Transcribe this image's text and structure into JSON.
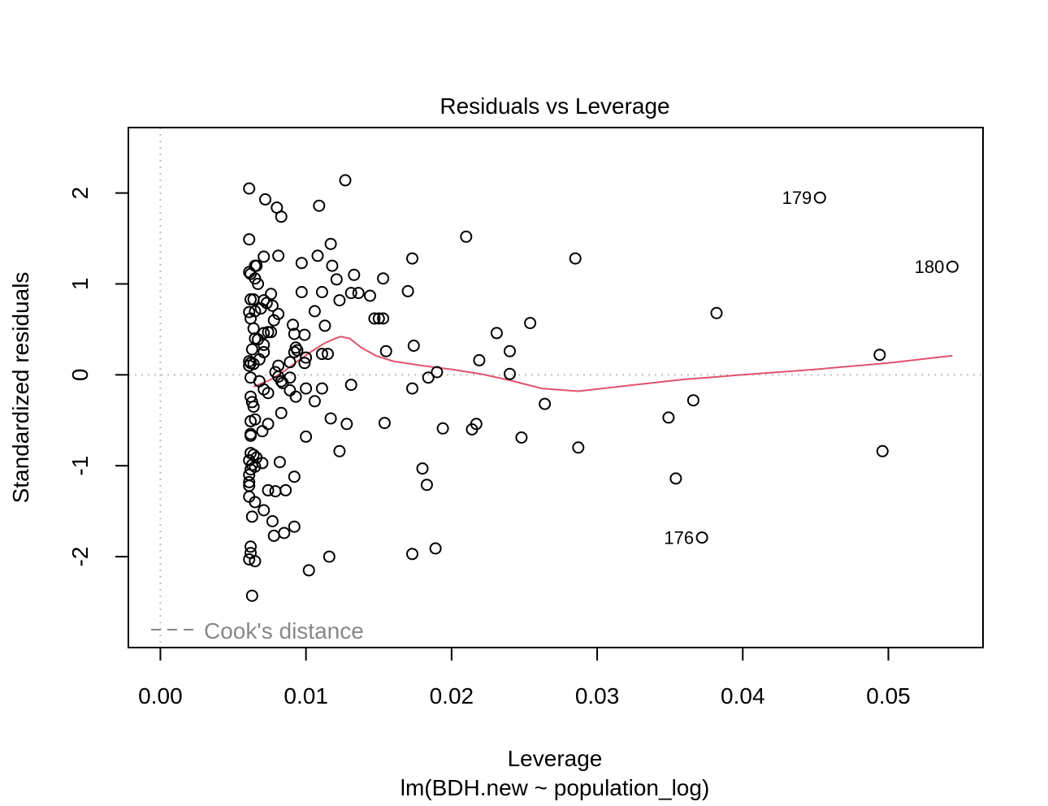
{
  "chart_data": {
    "type": "scatter",
    "title": "Residuals vs Leverage",
    "xlabel": "Leverage",
    "subtitle": "lm(BDH.new ~ population_log)",
    "ylabel": "Standardized residuals",
    "xlim": [
      -0.0022,
      0.0565
    ],
    "ylim": [
      -3.0,
      2.72
    ],
    "x_ticks": [
      0.0,
      0.01,
      0.02,
      0.03,
      0.04,
      0.05
    ],
    "x_tick_labels": [
      "0.00",
      "0.01",
      "0.02",
      "0.03",
      "0.04",
      "0.05"
    ],
    "y_ticks": [
      -2,
      -1,
      0,
      1,
      2
    ],
    "y_tick_labels": [
      "-2",
      "-1",
      "0",
      "1",
      "2"
    ],
    "legend": {
      "position": "bottom-left",
      "label": "Cook's distance",
      "style": "dashed"
    },
    "reference_lines": {
      "x": 0,
      "y": 0,
      "style": "dotted",
      "color": "#BEBEBE"
    },
    "colors": {
      "points": "#000000",
      "smoother": "#DF536B",
      "reference": "#BEBEBE",
      "legend_text": "#888888"
    },
    "points": [
      {
        "x": 0.0061,
        "y": 2.05
      },
      {
        "x": 0.0127,
        "y": 2.14
      },
      {
        "x": 0.0072,
        "y": 1.93
      },
      {
        "x": 0.008,
        "y": 1.84
      },
      {
        "x": 0.0109,
        "y": 1.86
      },
      {
        "x": 0.0083,
        "y": 1.74
      },
      {
        "x": 0.0061,
        "y": 1.49
      },
      {
        "x": 0.0117,
        "y": 1.44
      },
      {
        "x": 0.0071,
        "y": 1.3
      },
      {
        "x": 0.0081,
        "y": 1.31
      },
      {
        "x": 0.0108,
        "y": 1.31
      },
      {
        "x": 0.0065,
        "y": 1.2
      },
      {
        "x": 0.0066,
        "y": 1.2
      },
      {
        "x": 0.0097,
        "y": 1.23
      },
      {
        "x": 0.0118,
        "y": 1.2
      },
      {
        "x": 0.0061,
        "y": 1.13
      },
      {
        "x": 0.0062,
        "y": 1.11
      },
      {
        "x": 0.0065,
        "y": 1.06
      },
      {
        "x": 0.0067,
        "y": 1.0
      },
      {
        "x": 0.0133,
        "y": 1.1
      },
      {
        "x": 0.0121,
        "y": 1.05
      },
      {
        "x": 0.0153,
        "y": 1.06
      },
      {
        "x": 0.0173,
        "y": 1.28
      },
      {
        "x": 0.021,
        "y": 1.52
      },
      {
        "x": 0.0285,
        "y": 1.28
      },
      {
        "x": 0.0097,
        "y": 0.91
      },
      {
        "x": 0.0111,
        "y": 0.91
      },
      {
        "x": 0.0131,
        "y": 0.9
      },
      {
        "x": 0.0136,
        "y": 0.9
      },
      {
        "x": 0.0144,
        "y": 0.87
      },
      {
        "x": 0.017,
        "y": 0.92
      },
      {
        "x": 0.0123,
        "y": 0.82
      },
      {
        "x": 0.0076,
        "y": 0.89
      },
      {
        "x": 0.0062,
        "y": 0.83
      },
      {
        "x": 0.0064,
        "y": 0.83
      },
      {
        "x": 0.0071,
        "y": 0.82
      },
      {
        "x": 0.0073,
        "y": 0.79
      },
      {
        "x": 0.0077,
        "y": 0.76
      },
      {
        "x": 0.0069,
        "y": 0.73
      },
      {
        "x": 0.0065,
        "y": 0.7
      },
      {
        "x": 0.0061,
        "y": 0.69
      },
      {
        "x": 0.0106,
        "y": 0.7
      },
      {
        "x": 0.0081,
        "y": 0.67
      },
      {
        "x": 0.0062,
        "y": 0.62
      },
      {
        "x": 0.0078,
        "y": 0.6
      },
      {
        "x": 0.0147,
        "y": 0.62
      },
      {
        "x": 0.015,
        "y": 0.62
      },
      {
        "x": 0.0153,
        "y": 0.62
      },
      {
        "x": 0.0254,
        "y": 0.57
      },
      {
        "x": 0.0382,
        "y": 0.68
      },
      {
        "x": 0.0064,
        "y": 0.51
      },
      {
        "x": 0.0091,
        "y": 0.55
      },
      {
        "x": 0.0113,
        "y": 0.54
      },
      {
        "x": 0.0071,
        "y": 0.46
      },
      {
        "x": 0.0074,
        "y": 0.47
      },
      {
        "x": 0.0076,
        "y": 0.47
      },
      {
        "x": 0.0092,
        "y": 0.45
      },
      {
        "x": 0.0099,
        "y": 0.44
      },
      {
        "x": 0.0065,
        "y": 0.4
      },
      {
        "x": 0.0067,
        "y": 0.39
      },
      {
        "x": 0.0231,
        "y": 0.46
      },
      {
        "x": 0.0071,
        "y": 0.33
      },
      {
        "x": 0.0093,
        "y": 0.3
      },
      {
        "x": 0.0094,
        "y": 0.27
      },
      {
        "x": 0.0063,
        "y": 0.28
      },
      {
        "x": 0.0071,
        "y": 0.25
      },
      {
        "x": 0.0092,
        "y": 0.25
      },
      {
        "x": 0.0111,
        "y": 0.23
      },
      {
        "x": 0.0115,
        "y": 0.23
      },
      {
        "x": 0.01,
        "y": 0.19
      },
      {
        "x": 0.0068,
        "y": 0.17
      },
      {
        "x": 0.0061,
        "y": 0.15
      },
      {
        "x": 0.0062,
        "y": 0.13
      },
      {
        "x": 0.0064,
        "y": 0.12
      },
      {
        "x": 0.0061,
        "y": 0.1
      },
      {
        "x": 0.0081,
        "y": 0.1
      },
      {
        "x": 0.0089,
        "y": 0.14
      },
      {
        "x": 0.0099,
        "y": 0.13
      },
      {
        "x": 0.0155,
        "y": 0.26
      },
      {
        "x": 0.0174,
        "y": 0.32
      },
      {
        "x": 0.0219,
        "y": 0.16
      },
      {
        "x": 0.024,
        "y": 0.26
      },
      {
        "x": 0.0079,
        "y": 0.03
      },
      {
        "x": 0.019,
        "y": 0.03
      },
      {
        "x": 0.024,
        "y": 0.01
      },
      {
        "x": 0.0494,
        "y": 0.22
      },
      {
        "x": 0.0062,
        "y": -0.03
      },
      {
        "x": 0.0081,
        "y": -0.02
      },
      {
        "x": 0.0083,
        "y": -0.07
      },
      {
        "x": 0.0084,
        "y": -0.09
      },
      {
        "x": 0.0089,
        "y": -0.03
      },
      {
        "x": 0.0068,
        "y": -0.07
      },
      {
        "x": 0.0131,
        "y": -0.11
      },
      {
        "x": 0.0184,
        "y": -0.03
      },
      {
        "x": 0.01,
        "y": -0.15
      },
      {
        "x": 0.0111,
        "y": -0.15
      },
      {
        "x": 0.0173,
        "y": -0.15
      },
      {
        "x": 0.0071,
        "y": -0.16
      },
      {
        "x": 0.0074,
        "y": -0.2
      },
      {
        "x": 0.0089,
        "y": -0.17
      },
      {
        "x": 0.0093,
        "y": -0.24
      },
      {
        "x": 0.0062,
        "y": -0.24
      },
      {
        "x": 0.0063,
        "y": -0.3
      },
      {
        "x": 0.0064,
        "y": -0.35
      },
      {
        "x": 0.0106,
        "y": -0.29
      },
      {
        "x": 0.0264,
        "y": -0.32
      },
      {
        "x": 0.0366,
        "y": -0.28
      },
      {
        "x": 0.0083,
        "y": -0.42
      },
      {
        "x": 0.0062,
        "y": -0.51
      },
      {
        "x": 0.0065,
        "y": -0.49
      },
      {
        "x": 0.0074,
        "y": -0.54
      },
      {
        "x": 0.0117,
        "y": -0.48
      },
      {
        "x": 0.0128,
        "y": -0.54
      },
      {
        "x": 0.0154,
        "y": -0.53
      },
      {
        "x": 0.0194,
        "y": -0.59
      },
      {
        "x": 0.0214,
        "y": -0.6
      },
      {
        "x": 0.0217,
        "y": -0.54
      },
      {
        "x": 0.0349,
        "y": -0.47
      },
      {
        "x": 0.0062,
        "y": -0.65
      },
      {
        "x": 0.007,
        "y": -0.62
      },
      {
        "x": 0.01,
        "y": -0.68
      },
      {
        "x": 0.0062,
        "y": -0.67
      },
      {
        "x": 0.0248,
        "y": -0.69
      },
      {
        "x": 0.0123,
        "y": -0.84
      },
      {
        "x": 0.0287,
        "y": -0.8
      },
      {
        "x": 0.0496,
        "y": -0.84
      },
      {
        "x": 0.0062,
        "y": -0.86
      },
      {
        "x": 0.0064,
        "y": -0.88
      },
      {
        "x": 0.0066,
        "y": -0.91
      },
      {
        "x": 0.007,
        "y": -0.97
      },
      {
        "x": 0.0082,
        "y": -0.96
      },
      {
        "x": 0.0061,
        "y": -0.94
      },
      {
        "x": 0.0063,
        "y": -0.99
      },
      {
        "x": 0.0065,
        "y": -1.01
      },
      {
        "x": 0.0062,
        "y": -1.04
      },
      {
        "x": 0.018,
        "y": -1.03
      },
      {
        "x": 0.0061,
        "y": -1.1
      },
      {
        "x": 0.0092,
        "y": -1.12
      },
      {
        "x": 0.0061,
        "y": -1.18
      },
      {
        "x": 0.0183,
        "y": -1.21
      },
      {
        "x": 0.0354,
        "y": -1.14
      },
      {
        "x": 0.0061,
        "y": -1.22
      },
      {
        "x": 0.0074,
        "y": -1.27
      },
      {
        "x": 0.0079,
        "y": -1.28
      },
      {
        "x": 0.0086,
        "y": -1.27
      },
      {
        "x": 0.0061,
        "y": -1.34
      },
      {
        "x": 0.0065,
        "y": -1.4
      },
      {
        "x": 0.0071,
        "y": -1.49
      },
      {
        "x": 0.0063,
        "y": -1.56
      },
      {
        "x": 0.0077,
        "y": -1.61
      },
      {
        "x": 0.0092,
        "y": -1.67
      },
      {
        "x": 0.0085,
        "y": -1.74
      },
      {
        "x": 0.0078,
        "y": -1.77
      },
      {
        "x": 0.0372,
        "y": -1.79
      },
      {
        "x": 0.0062,
        "y": -1.89
      },
      {
        "x": 0.0062,
        "y": -1.96
      },
      {
        "x": 0.0061,
        "y": -2.03
      },
      {
        "x": 0.0065,
        "y": -2.05
      },
      {
        "x": 0.0116,
        "y": -2.0
      },
      {
        "x": 0.0173,
        "y": -1.97
      },
      {
        "x": 0.0189,
        "y": -1.91
      },
      {
        "x": 0.0102,
        "y": -2.15
      },
      {
        "x": 0.0063,
        "y": -2.43
      },
      {
        "x": 0.0453,
        "y": 1.95
      },
      {
        "x": 0.0544,
        "y": 1.19
      }
    ],
    "point_labels": [
      {
        "label": "179",
        "x": 0.0453,
        "y": 1.95
      },
      {
        "label": "180",
        "x": 0.0544,
        "y": 1.19
      },
      {
        "label": "176",
        "x": 0.0372,
        "y": -1.79
      }
    ],
    "smoother": {
      "x": [
        0.0064,
        0.0075,
        0.0085,
        0.0095,
        0.0105,
        0.0113,
        0.012,
        0.0124,
        0.013,
        0.0138,
        0.0148,
        0.016,
        0.018,
        0.02,
        0.022,
        0.024,
        0.0262,
        0.0287,
        0.032,
        0.036,
        0.04,
        0.045,
        0.05,
        0.0544
      ],
      "y": [
        -0.13,
        -0.06,
        0.04,
        0.16,
        0.27,
        0.35,
        0.4,
        0.42,
        0.4,
        0.3,
        0.21,
        0.15,
        0.1,
        0.06,
        0.01,
        -0.06,
        -0.15,
        -0.18,
        -0.12,
        -0.05,
        0.0,
        0.06,
        0.13,
        0.21
      ]
    }
  }
}
